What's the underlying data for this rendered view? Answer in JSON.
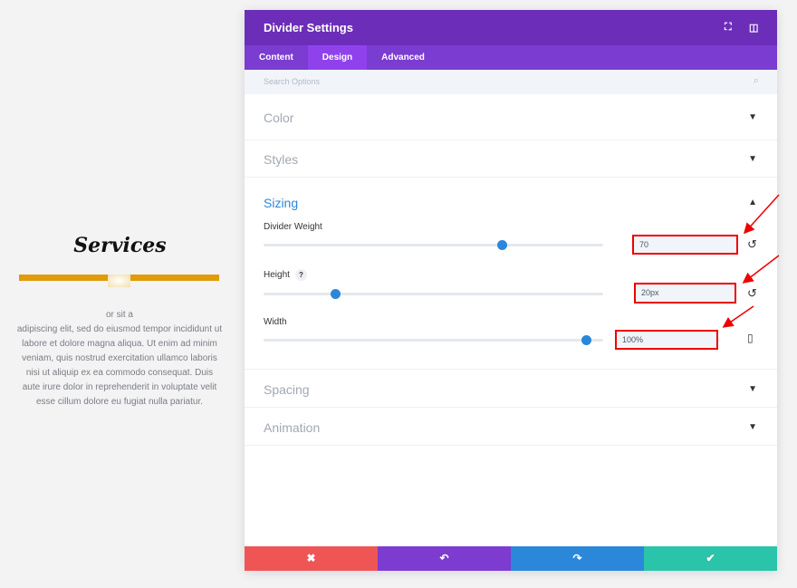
{
  "preview": {
    "heading": "Services",
    "text_line1": "or sit a",
    "text": "adipiscing elit, sed do eiusmod tempor incididunt ut labore et dolore magna aliqua. Ut enim ad minim veniam, quis nostrud exercitation ullamco laboris nisi ut aliquip ex ea commodo consequat. Duis aute irure dolor in reprehenderit in voluptate velit esse cillum dolore eu fugiat nulla pariatur.",
    "divider_color": "#e09b0a"
  },
  "modal": {
    "title": "Divider Settings",
    "tabs": [
      {
        "label": "Content"
      },
      {
        "label": "Design",
        "active": true
      },
      {
        "label": "Advanced"
      }
    ],
    "search_placeholder": "Search Options",
    "sections": {
      "color": "Color",
      "styles": "Styles",
      "sizing": "Sizing",
      "spacing": "Spacing",
      "animation": "Animation"
    },
    "fields": [
      {
        "label": "Divider Weight",
        "value": "70",
        "slider_percent": 70
      },
      {
        "label": "Height",
        "help": "?",
        "value": "20px",
        "slider_percent": 21
      },
      {
        "label": "Width",
        "value": "100%",
        "slider_percent": 95
      }
    ],
    "footer": {
      "cancel": "✖",
      "undo": "↶",
      "redo": "↷",
      "save": "✔"
    },
    "colors": {
      "header": "#6c2eb9",
      "tabs": "#7b3cd1",
      "accent": "#2b87da",
      "cancel": "#ef5555",
      "undo": "#7e3bd0",
      "redo": "#2b87da",
      "save": "#29c4a9",
      "annotation": "#e00000"
    }
  }
}
